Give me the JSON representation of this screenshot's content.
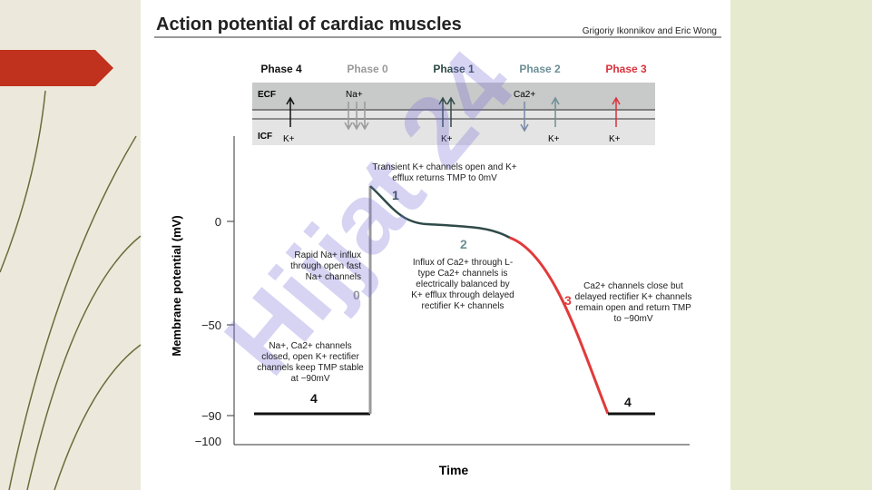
{
  "header": {
    "title": "Action potential of cardiac muscles",
    "authors": "Grigoriy Ikonnikov and Eric Wong"
  },
  "phases": [
    "Phase 4",
    "Phase 0",
    "Phase 1",
    "Phase 2",
    "Phase 3"
  ],
  "membrane": {
    "ecf": "ECF",
    "icf": "ICF",
    "ions": [
      "K+",
      "Na+",
      "K+",
      "Ca2+",
      "K+",
      "K+"
    ]
  },
  "axis": {
    "y_title": "Membrane potential (mV)",
    "x_title": "Time",
    "y_ticks": [
      "0",
      "−50",
      "−90",
      "−100"
    ]
  },
  "annotations": [
    {
      "number": "4",
      "text": "Na+, Ca2+ channels closed, open K+ rectifier channels keep TMP stable at −90mV"
    },
    {
      "number": "0",
      "text": "Rapid Na+ influx through open fast Na+ channels"
    },
    {
      "number": "1",
      "text": "Transient K+ channels open and K+ efflux returns TMP to 0mV"
    },
    {
      "number": "2",
      "text": "Influx of Ca2+ through L-type Ca2+ channels is electrically balanced by K+ efflux through delayed rectifier K+ channels"
    },
    {
      "number": "3",
      "text": "Ca2+ channels close but delayed rectifier K+ channels remain open and return TMP to −90mV"
    },
    {
      "number": "4"
    }
  ],
  "watermark": "Hijjat 24"
}
